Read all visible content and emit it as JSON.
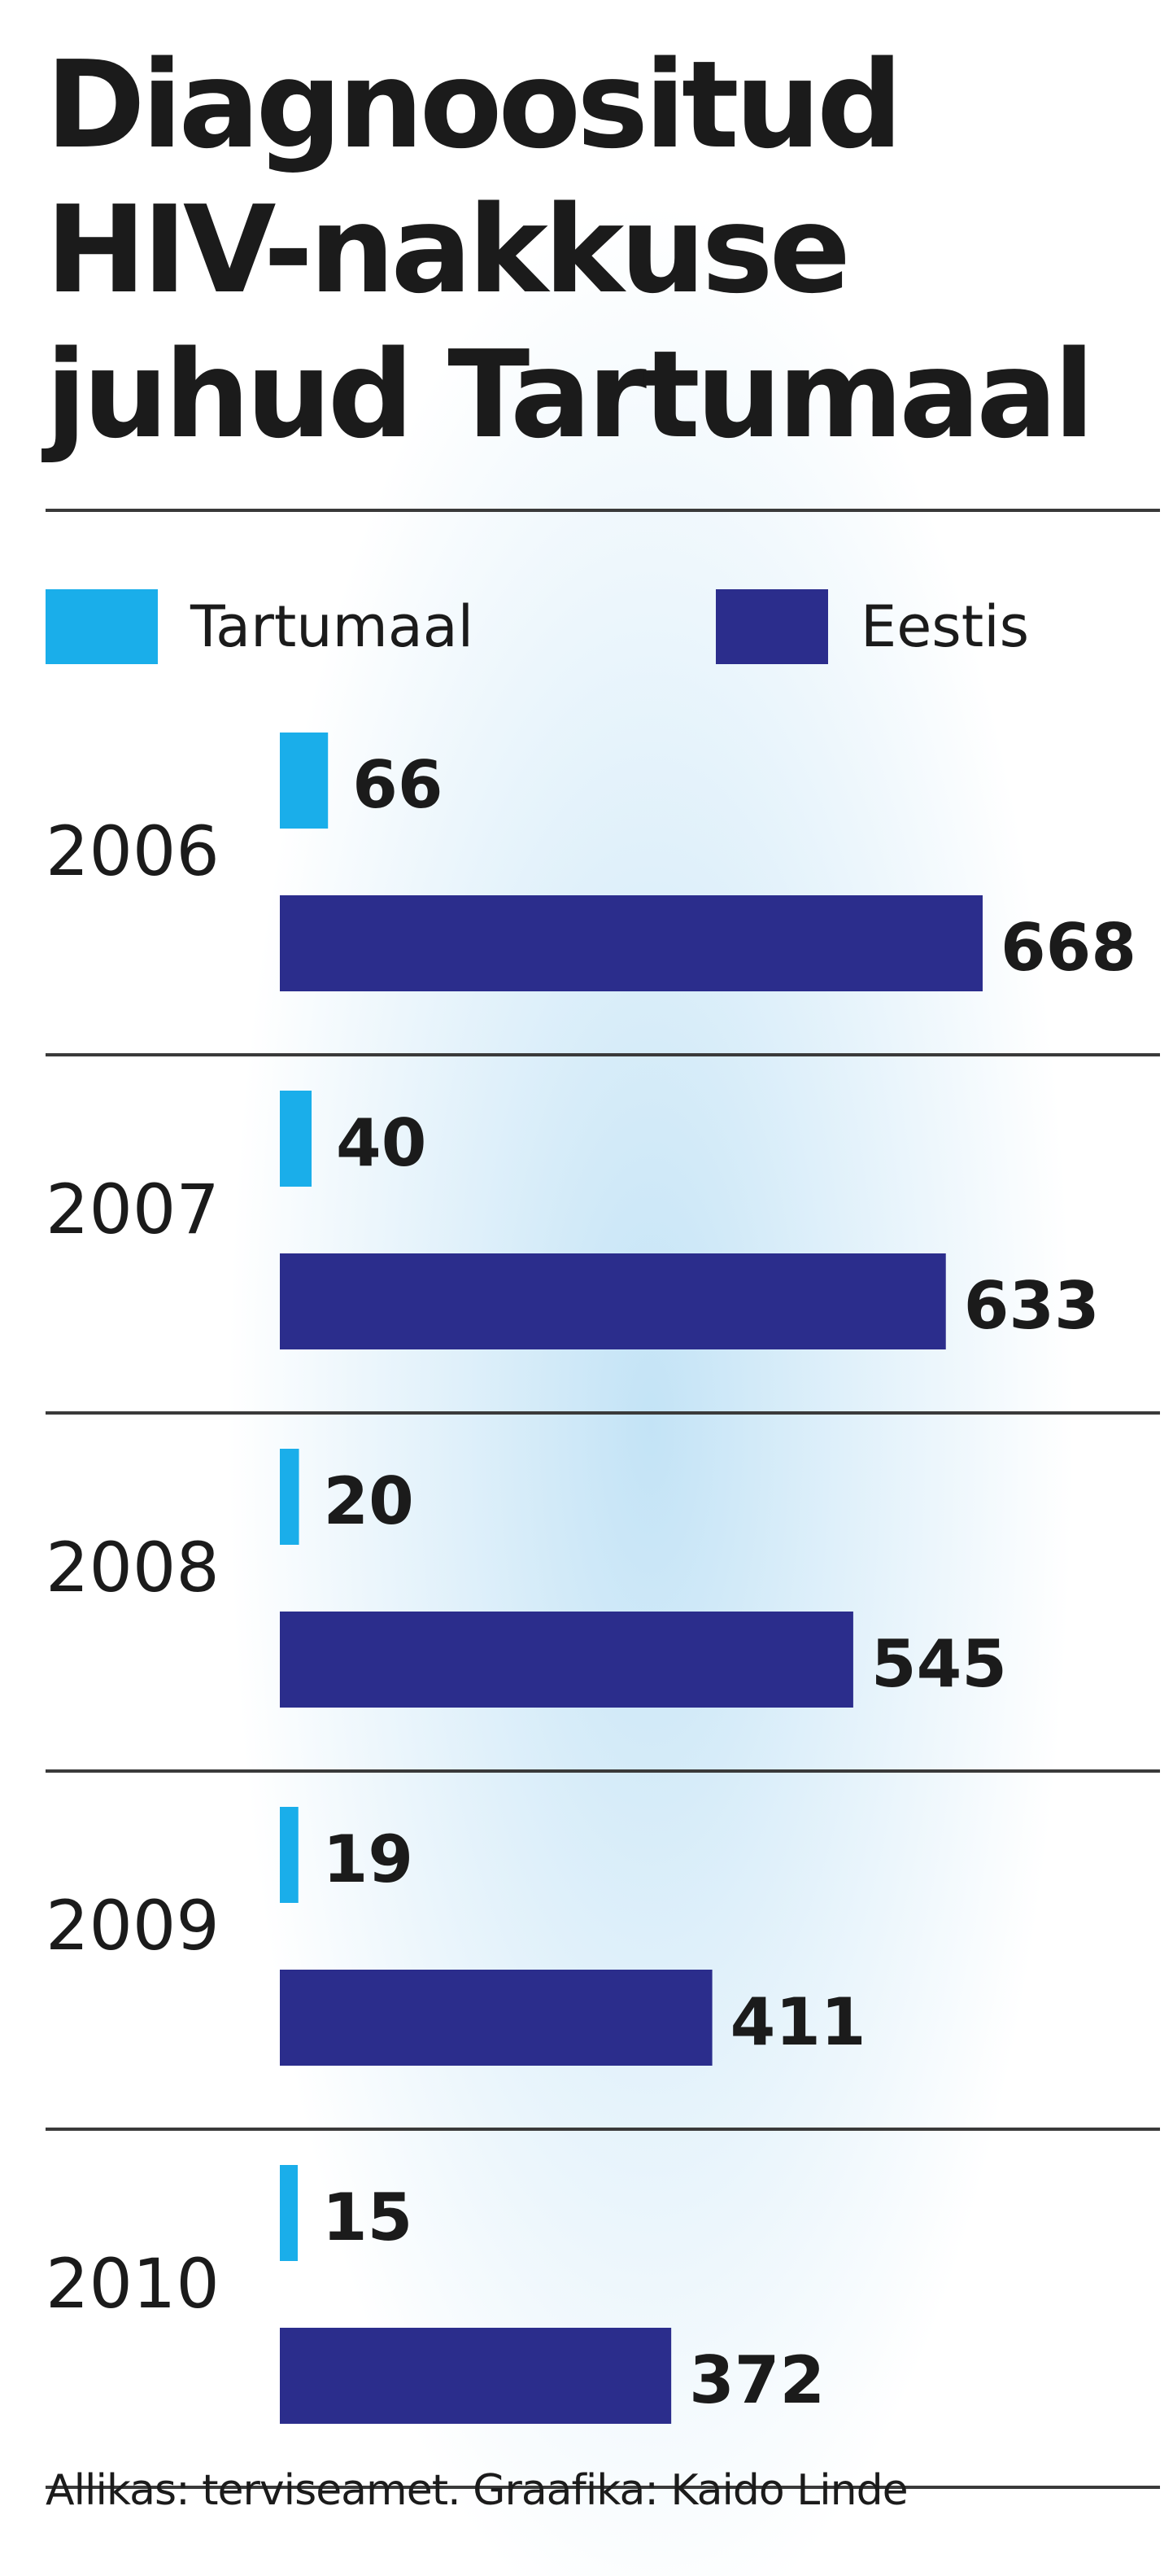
{
  "title_lines": [
    "Diagnoositud",
    "HIV-nakkuse",
    "juhud Tartumaal"
  ],
  "legend": [
    {
      "label": "Tartumaal",
      "color": "#1aaeea"
    },
    {
      "label": "Eestis",
      "color": "#2b2d8c"
    }
  ],
  "source": "Allikas: terviseamet. Graafika: Kaido Linde",
  "chart_data": {
    "type": "bar",
    "orientation": "horizontal",
    "categories": [
      "2006",
      "2007",
      "2008",
      "2009",
      "2010"
    ],
    "series": [
      {
        "name": "Tartumaal",
        "color": "#1aaeea",
        "values": [
          66,
          40,
          20,
          19,
          15
        ]
      },
      {
        "name": "Eestis",
        "color": "#2b2d8c",
        "values": [
          668,
          633,
          545,
          411,
          372
        ]
      }
    ],
    "data_labels": true,
    "legend_position": "top",
    "grid": false
  }
}
